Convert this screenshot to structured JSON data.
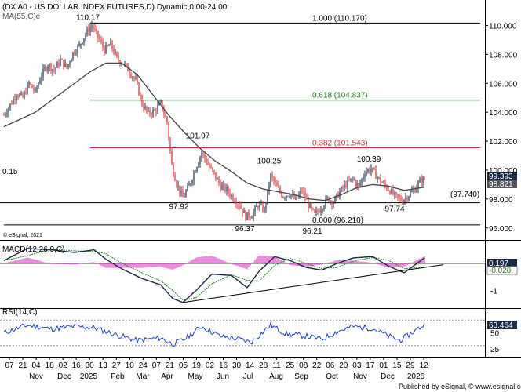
{
  "header": {
    "title": "(DX A0 - US DOLLAR INDEX FUTURES,D) Dynamic,0:00-24:00",
    "ma_label": "MA(55,C)e",
    "copyright": "© eSignal, 2021"
  },
  "price_panel": {
    "ylim": [
      95.5,
      111.0
    ],
    "y_ticks": [
      "110.000",
      "108.000",
      "106.000",
      "104.000",
      "102.000",
      "100.000",
      "98.000",
      "96.000"
    ],
    "y_tick_values": [
      110,
      108,
      106,
      104,
      102,
      100,
      98,
      96
    ],
    "last_price": "99.393",
    "ma_value": "98.821",
    "left_label": "0.15",
    "support_label": "(97.740)",
    "support_value": 97.74,
    "fib_levels": [
      {
        "label": "1.000 (110.170)",
        "value": 110.17,
        "color": "#000000"
      },
      {
        "label": "0.618 (104.837)",
        "value": 104.837,
        "color": "#1a8a1a"
      },
      {
        "label": "0.382 (101.543)",
        "value": 101.543,
        "color": "#e0282a"
      },
      {
        "label": "0.000 (96.210)",
        "value": 96.21,
        "color": "#000000"
      }
    ],
    "annotations": [
      {
        "text": "110.17",
        "x": 112,
        "value": 110.17
      },
      {
        "text": "101.97",
        "x": 252,
        "value": 101.97
      },
      {
        "text": "97.92",
        "x": 228,
        "value": 97.92
      },
      {
        "text": "100.25",
        "x": 343,
        "value": 100.25
      },
      {
        "text": "96.37",
        "x": 312,
        "value": 96.37
      },
      {
        "text": "96.21",
        "x": 398,
        "value": 96.21
      },
      {
        "text": "100.39",
        "x": 470,
        "value": 100.39
      },
      {
        "text": "97.74",
        "x": 503,
        "value": 97.74
      }
    ]
  },
  "macd_panel": {
    "label": "MACD(12,26,9,C)",
    "ylim": [
      -1.6,
      0.75
    ],
    "y_ticks": [
      "0",
      "-1"
    ],
    "y_tick_values": [
      0,
      -1
    ],
    "macd_value": "0.197",
    "signal_value": "-0.028"
  },
  "rsi_panel": {
    "label": "RSI(14,C)",
    "ylim": [
      15,
      85
    ],
    "y_ticks": [
      "50",
      "25"
    ],
    "y_tick_values": [
      50,
      25
    ],
    "value": "63.464",
    "bands": [
      70,
      30
    ]
  },
  "x_axis": {
    "day_labels": [
      "07",
      "21",
      "04",
      "18",
      "02",
      "16",
      "30",
      "13",
      "27",
      "10",
      "24",
      "07",
      "21",
      "05",
      "19",
      "02",
      "16",
      "30",
      "14",
      "28",
      "11",
      "25",
      "08",
      "22",
      "06",
      "20",
      "03",
      "17",
      "01",
      "15",
      "29",
      "12"
    ],
    "month_labels": [
      "Nov",
      "Dec",
      "2025",
      "Feb",
      "Mar",
      "Apr",
      "May",
      "Jun",
      "Jul",
      "Aug",
      "Sep",
      "Oct",
      "Nov",
      "Dec",
      "2026"
    ],
    "footer": "Published by eSignal, © www.esignal.com"
  },
  "chart_data": {
    "type": "candlestick",
    "title": "(DX A0 - US DOLLAR INDEX FUTURES,D) Dynamic,0:00-24:00",
    "series": [
      {
        "name": "DX A0 close",
        "points": [
          [
            0,
            103.8
          ],
          [
            8,
            104.5
          ],
          [
            16,
            105.3
          ],
          [
            24,
            105.0
          ],
          [
            32,
            106.0
          ],
          [
            40,
            105.4
          ],
          [
            48,
            106.6
          ],
          [
            56,
            107.3
          ],
          [
            64,
            106.9
          ],
          [
            72,
            107.6
          ],
          [
            80,
            107.1
          ],
          [
            88,
            108.1
          ],
          [
            96,
            108.6
          ],
          [
            104,
            109.4
          ],
          [
            112,
            110.0
          ],
          [
            120,
            109.2
          ],
          [
            128,
            108.3
          ],
          [
            136,
            108.7
          ],
          [
            144,
            107.7
          ],
          [
            152,
            107.4
          ],
          [
            160,
            106.8
          ],
          [
            168,
            106.2
          ],
          [
            176,
            104.6
          ],
          [
            184,
            103.9
          ],
          [
            192,
            104.1
          ],
          [
            200,
            104.6
          ],
          [
            208,
            103.3
          ],
          [
            214,
            100.3
          ],
          [
            220,
            99.1
          ],
          [
            228,
            98.1
          ],
          [
            236,
            98.9
          ],
          [
            244,
            100.1
          ],
          [
            252,
            101.2
          ],
          [
            260,
            100.4
          ],
          [
            268,
            99.7
          ],
          [
            276,
            98.9
          ],
          [
            284,
            98.6
          ],
          [
            292,
            98.1
          ],
          [
            300,
            97.6
          ],
          [
            308,
            96.8
          ],
          [
            316,
            96.9
          ],
          [
            324,
            97.6
          ],
          [
            332,
            97.2
          ],
          [
            340,
            99.6
          ],
          [
            348,
            98.8
          ],
          [
            356,
            98.2
          ],
          [
            364,
            98.4
          ],
          [
            372,
            97.9
          ],
          [
            380,
            98.6
          ],
          [
            388,
            97.6
          ],
          [
            396,
            96.9
          ],
          [
            404,
            97.4
          ],
          [
            412,
            98.0
          ],
          [
            420,
            97.8
          ],
          [
            428,
            98.5
          ],
          [
            436,
            99.0
          ],
          [
            444,
            99.4
          ],
          [
            452,
            98.8
          ],
          [
            460,
            99.9
          ],
          [
            468,
            100.1
          ],
          [
            476,
            99.5
          ],
          [
            484,
            99.0
          ],
          [
            492,
            98.6
          ],
          [
            500,
            98.1
          ],
          [
            508,
            97.9
          ],
          [
            516,
            98.3
          ],
          [
            524,
            98.7
          ],
          [
            530,
            99.2
          ],
          [
            536,
            99.4
          ]
        ]
      },
      {
        "name": "MA(55,C)e",
        "points": [
          [
            0,
            103.0
          ],
          [
            40,
            104.0
          ],
          [
            80,
            105.6
          ],
          [
            110,
            106.8
          ],
          [
            130,
            107.4
          ],
          [
            150,
            107.4
          ],
          [
            170,
            106.6
          ],
          [
            190,
            105.2
          ],
          [
            210,
            103.8
          ],
          [
            230,
            102.6
          ],
          [
            250,
            101.5
          ],
          [
            270,
            100.6
          ],
          [
            290,
            99.9
          ],
          [
            310,
            99.1
          ],
          [
            330,
            98.7
          ],
          [
            350,
            98.5
          ],
          [
            370,
            98.3
          ],
          [
            390,
            98.0
          ],
          [
            410,
            97.9
          ],
          [
            430,
            98.3
          ],
          [
            450,
            98.8
          ],
          [
            470,
            99.0
          ],
          [
            490,
            98.9
          ],
          [
            510,
            98.6
          ],
          [
            536,
            98.82
          ]
        ]
      }
    ],
    "ylim": [
      95.5,
      111.0
    ]
  }
}
